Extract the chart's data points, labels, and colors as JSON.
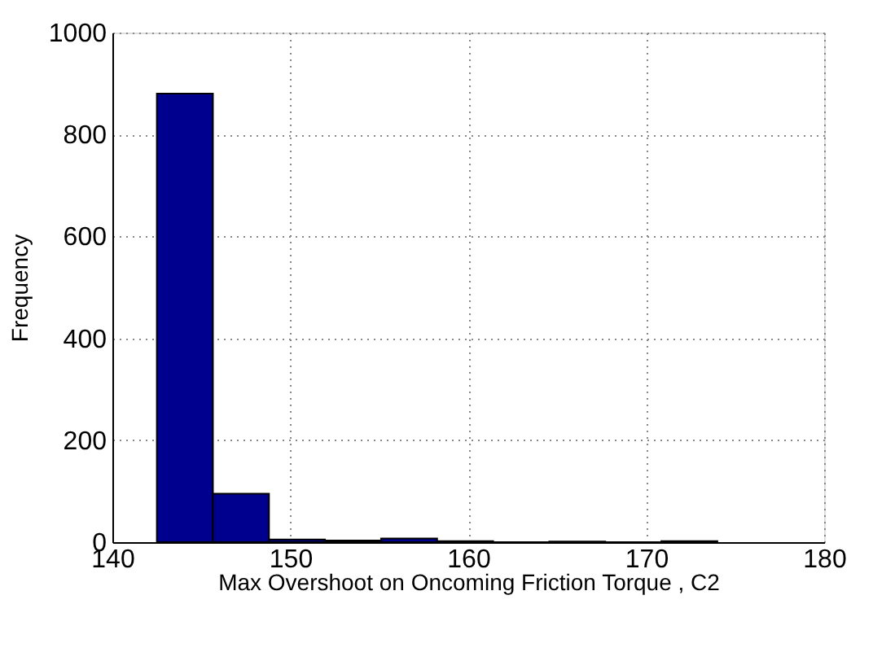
{
  "chart_data": {
    "type": "histogram",
    "xlabel": "Max Overshoot on Oncoming Friction Torque , C2",
    "ylabel": "Frequency",
    "bins": [
      142.5,
      145.65,
      148.8,
      151.95,
      155.1,
      158.25,
      161.4,
      164.55,
      167.7,
      170.85,
      174.0
    ],
    "values": [
      880,
      95,
      5,
      3,
      7,
      2,
      0,
      1,
      0,
      2
    ],
    "color": "#00008f",
    "xlim": [
      140,
      180
    ],
    "xticks": [
      140,
      150,
      160,
      170,
      180
    ],
    "ylim": [
      0,
      1000
    ],
    "yticks": [
      0,
      200,
      400,
      600,
      800,
      1000
    ],
    "grid": true
  }
}
